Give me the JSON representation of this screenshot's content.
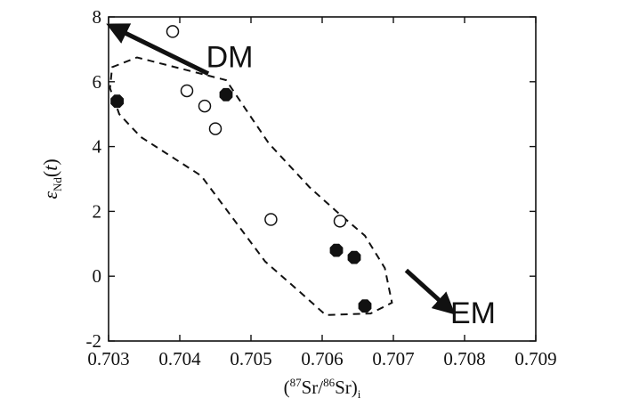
{
  "chart_data": {
    "type": "scatter",
    "xlim": [
      0.703,
      0.709
    ],
    "ylim": [
      -2,
      8
    ],
    "x_ticks": [
      "0.703",
      "0.704",
      "0.705",
      "0.706",
      "0.707",
      "0.708",
      "0.709"
    ],
    "y_ticks": [
      "-2",
      "0",
      "2",
      "4",
      "6",
      "8"
    ],
    "xlabel": {
      "open": "(",
      "sup1": "87",
      "mid": "Sr/",
      "sup2": "86",
      "close": "Sr)",
      "sub": "i"
    },
    "ylabel": {
      "symbol": "ε",
      "sub": "Nd",
      "paren_open": "(",
      "var": "t",
      "paren_close": ")"
    },
    "grid": false,
    "series": [
      {
        "marker": "open-circle",
        "points": [
          {
            "x": 0.7039,
            "y": 7.55
          },
          {
            "x": 0.7041,
            "y": 5.72
          },
          {
            "x": 0.70435,
            "y": 5.25
          },
          {
            "x": 0.7045,
            "y": 4.55
          },
          {
            "x": 0.70528,
            "y": 1.75
          },
          {
            "x": 0.70625,
            "y": 1.7
          }
        ]
      },
      {
        "marker": "filled-octagon",
        "points": [
          {
            "x": 0.70312,
            "y": 5.4
          },
          {
            "x": 0.70465,
            "y": 5.6
          },
          {
            "x": 0.7062,
            "y": 0.8
          },
          {
            "x": 0.70645,
            "y": 0.58
          },
          {
            "x": 0.7066,
            "y": -0.92
          }
        ]
      }
    ],
    "field_outline": {
      "style": "dashed",
      "points": [
        {
          "x": 0.70305,
          "y": 6.45
        },
        {
          "x": 0.7034,
          "y": 6.75
        },
        {
          "x": 0.70465,
          "y": 6.05
        },
        {
          "x": 0.70525,
          "y": 4.1
        },
        {
          "x": 0.70582,
          "y": 2.75
        },
        {
          "x": 0.7062,
          "y": 2.0
        },
        {
          "x": 0.7066,
          "y": 1.25
        },
        {
          "x": 0.70688,
          "y": 0.25
        },
        {
          "x": 0.70698,
          "y": -0.82
        },
        {
          "x": 0.70668,
          "y": -1.15
        },
        {
          "x": 0.70605,
          "y": -1.2
        },
        {
          "x": 0.70572,
          "y": -0.55
        },
        {
          "x": 0.7052,
          "y": 0.45
        },
        {
          "x": 0.7043,
          "y": 3.1
        },
        {
          "x": 0.70345,
          "y": 4.3
        },
        {
          "x": 0.70315,
          "y": 5.0
        },
        {
          "x": 0.70302,
          "y": 5.8
        }
      ]
    },
    "annotations": [
      {
        "text": "DM",
        "x": 0.70437,
        "y": 6.45
      },
      {
        "text": "EM",
        "x": 0.7078,
        "y": -1.45
      }
    ],
    "arrows": [
      {
        "name": "dm-arrow",
        "x1": 0.7044,
        "y1": 6.25,
        "x2": 0.70305,
        "y2": 7.7
      },
      {
        "name": "em-arrow",
        "x1": 0.70718,
        "y1": 0.18,
        "x2": 0.7078,
        "y2": -1.05
      }
    ]
  }
}
